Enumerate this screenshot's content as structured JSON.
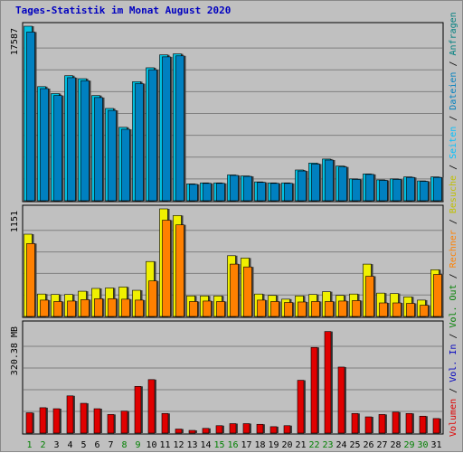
{
  "chart_data": {
    "type": "bar",
    "title": "Tages-Statistik im Monat August 2020",
    "categories": [
      "1",
      "2",
      "3",
      "4",
      "5",
      "6",
      "7",
      "8",
      "9",
      "10",
      "11",
      "12",
      "13",
      "14",
      "15",
      "16",
      "17",
      "18",
      "19",
      "20",
      "21",
      "22",
      "23",
      "24",
      "25",
      "26",
      "27",
      "28",
      "29",
      "30",
      "31"
    ],
    "weekend_categories": [
      "1",
      "2",
      "8",
      "9",
      "15",
      "16",
      "22",
      "23",
      "29",
      "30"
    ],
    "colors": {
      "weekday_label": "#000000",
      "weekend_label": "#008000",
      "anfragen": "#00c0e0",
      "dateien": "#0080c0",
      "seiten": "#00c0ff",
      "besuche": "#f0f000",
      "rechner": "#ff8000",
      "volumen": "#e00000",
      "grid": "#808080",
      "panel_bg": "#c0c0c0"
    },
    "panels": [
      {
        "ymax_label": "17587",
        "ylim": [
          0,
          17587
        ],
        "series": [
          {
            "name": "Anfragen",
            "color": "#00c0e0",
            "values": [
              17587,
              11500,
              10800,
              12600,
              12300,
              10600,
              9300,
              7400,
              12000,
              13400,
              14700,
              14800,
              1700,
              1800,
              1800,
              2600,
              2500,
              1900,
              1800,
              1800,
              3100,
              3800,
              4200,
              3500,
              2200,
              2700,
              2100,
              2200,
              2400,
              2000,
              2400
            ]
          },
          {
            "name": "Dateien",
            "color": "#0080c0",
            "values": [
              17000,
              11300,
              10600,
              12400,
              12100,
              10400,
              9100,
              7200,
              11800,
              13200,
              14500,
              14600,
              1650,
              1750,
              1750,
              2550,
              2450,
              1850,
              1750,
              1750,
              3000,
              3700,
              4100,
              3400,
              2150,
              2650,
              2050,
              2150,
              2350,
              1950,
              2350
            ]
          }
        ]
      },
      {
        "ymax_label": "1151",
        "ylim": [
          0,
          1151
        ],
        "series": [
          {
            "name": "Besuche",
            "color": "#f0f000",
            "values": [
              880,
              240,
              235,
              235,
              270,
              300,
              305,
              315,
              280,
              588,
              1151,
              1080,
              220,
              220,
              220,
              650,
              625,
              240,
              225,
              185,
              220,
              235,
              265,
              225,
              240,
              560,
              250,
              245,
              210,
              175,
              500
            ]
          },
          {
            "name": "Rechner",
            "color": "#ff8000",
            "values": [
              780,
              175,
              160,
              165,
              180,
              190,
              190,
              185,
              175,
              380,
              1030,
              980,
              160,
              165,
              160,
              560,
              530,
              175,
              160,
              150,
              155,
              160,
              160,
              165,
              170,
              430,
              145,
              145,
              140,
              120,
              450
            ]
          }
        ]
      },
      {
        "ymax_label": "320.38 MB",
        "ylim": [
          0,
          320.38
        ],
        "series": [
          {
            "name": "Volumen",
            "color": "#e00000",
            "values": [
              60,
              75,
              72,
              110,
              88,
              72,
              55,
              65,
              138,
              158,
              58,
              12,
              8,
              14,
              22,
              28,
              28,
              26,
              19,
              22,
              156,
              253,
              300,
              195,
              58,
              48,
              55,
              62,
              58,
              50,
              43
            ]
          }
        ]
      }
    ],
    "right_legend": [
      {
        "label": "Volumen",
        "color": "#e00000"
      },
      {
        "label": "Vol. In",
        "color": "#0000c0"
      },
      {
        "label": "Vol. Out",
        "color": "#008000"
      },
      {
        "label": "Rechner",
        "color": "#ff8000"
      },
      {
        "label": "Besuche",
        "color": "#c0c000"
      },
      {
        "label": "Seiten",
        "color": "#00c0ff"
      },
      {
        "label": "Dateien",
        "color": "#0080c0"
      },
      {
        "label": "Anfragen",
        "color": "#008080"
      }
    ],
    "legend_separator": "/",
    "legend_placement": "right",
    "grid": true
  }
}
